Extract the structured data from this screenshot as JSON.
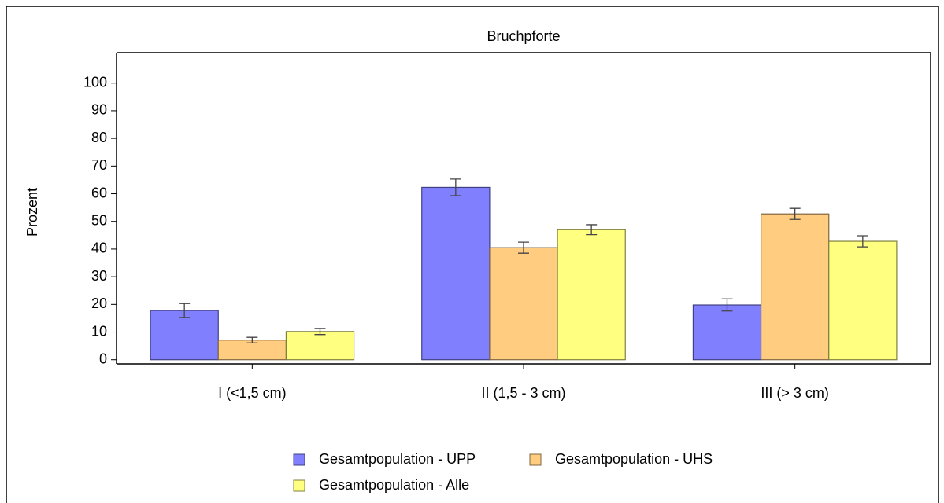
{
  "chart_data": {
    "type": "bar",
    "title": "Bruchpforte",
    "y_label": "Prozent",
    "categories": [
      "I (<1,5 cm)",
      "II (1,5 - 3 cm)",
      "III (> 3 cm)"
    ],
    "series": [
      {
        "name": "Gesamtpopulation - UPP",
        "color": "#8080ff",
        "values": [
          17.8,
          62.3,
          19.8
        ],
        "errors": [
          2.5,
          3,
          2.2
        ]
      },
      {
        "name": "Gesamtpopulation - UHS",
        "color": "#ffcc80",
        "values": [
          7.1,
          40.5,
          52.7
        ],
        "errors": [
          1,
          2,
          2
        ]
      },
      {
        "name": "Gesamtpopulation - Alle",
        "color": "#ffff80",
        "values": [
          10.2,
          47,
          42.8
        ],
        "errors": [
          1.1,
          1.8,
          2
        ]
      }
    ],
    "ylim": [
      -1.5,
      111
    ],
    "yticks": [
      0,
      10,
      20,
      30,
      40,
      50,
      60,
      70,
      80,
      90,
      100
    ],
    "grid": false,
    "legend": "bottom"
  }
}
